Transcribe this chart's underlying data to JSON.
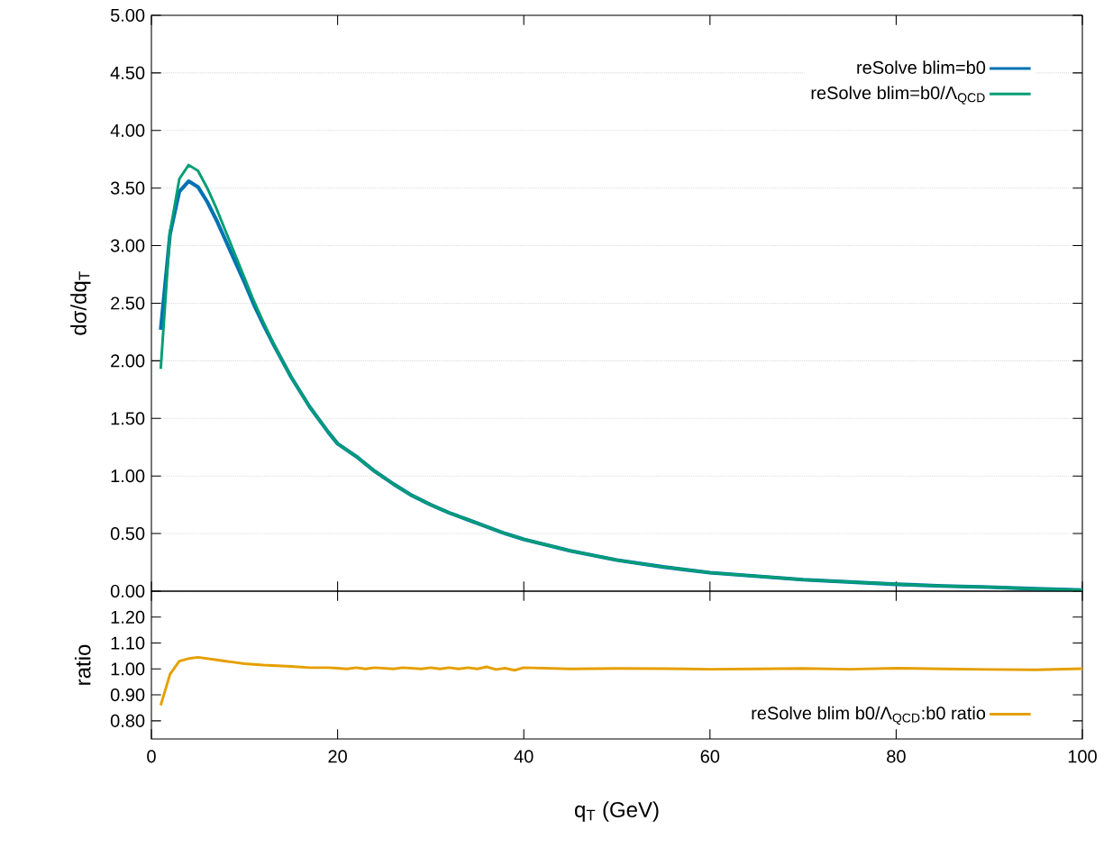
{
  "chart_data": [
    {
      "type": "line",
      "ylabel": "dσ/dq$_{T}$",
      "xlim": [
        0,
        100
      ],
      "ylim": [
        0,
        5
      ],
      "xticks": [
        0,
        20,
        40,
        60,
        80,
        100
      ],
      "yticks": [
        {
          "value": 0,
          "label": "0.00"
        },
        {
          "value": 0.5,
          "label": "0.50"
        },
        {
          "value": 1,
          "label": "1.00"
        },
        {
          "value": 1.5,
          "label": "1.50"
        },
        {
          "value": 2,
          "label": "2.00"
        },
        {
          "value": 2.5,
          "label": "2.50"
        },
        {
          "value": 3,
          "label": "3.00"
        },
        {
          "value": 3.5,
          "label": "3.50"
        },
        {
          "value": 4,
          "label": "4.00"
        },
        {
          "value": 4.5,
          "label": "4.50"
        },
        {
          "value": 5,
          "label": "5.00"
        }
      ],
      "tick_labels": "y",
      "grid": "y",
      "legend": "top right",
      "x": [
        1,
        2,
        3,
        4,
        5,
        6,
        7,
        8,
        9,
        10,
        11,
        12,
        13,
        14,
        15,
        16,
        17,
        18,
        19,
        20,
        22,
        24,
        26,
        28,
        30,
        32,
        34,
        36,
        38,
        40,
        45,
        50,
        55,
        60,
        65,
        70,
        75,
        80,
        85,
        90,
        95,
        100
      ],
      "series": [
        {
          "name": "reSolve blim=b0",
          "color": "#0072b2",
          "values": [
            2.27,
            3.1,
            3.47,
            3.56,
            3.51,
            3.38,
            3.22,
            3.04,
            2.86,
            2.68,
            2.49,
            2.32,
            2.16,
            2.01,
            1.86,
            1.73,
            1.6,
            1.49,
            1.38,
            1.28,
            1.17,
            1.04,
            0.93,
            0.83,
            0.75,
            0.68,
            0.62,
            0.56,
            0.5,
            0.45,
            0.35,
            0.27,
            0.21,
            0.16,
            0.13,
            0.1,
            0.08,
            0.06,
            0.045,
            0.035,
            0.02,
            0.01
          ]
        },
        {
          "name": "reSolve blim=b0/Λ$_{QCD}$",
          "color": "#009e73",
          "values": [
            1.93,
            3.12,
            3.58,
            3.7,
            3.65,
            3.5,
            3.32,
            3.12,
            2.92,
            2.72,
            2.52,
            2.34,
            2.17,
            2.01,
            1.86,
            1.73,
            1.6,
            1.49,
            1.38,
            1.28,
            1.17,
            1.04,
            0.93,
            0.83,
            0.75,
            0.68,
            0.62,
            0.56,
            0.5,
            0.45,
            0.35,
            0.27,
            0.21,
            0.16,
            0.13,
            0.1,
            0.08,
            0.06,
            0.045,
            0.035,
            0.02,
            0.01
          ]
        }
      ]
    },
    {
      "type": "line",
      "xlabel": "q$_{T}$ (GeV)",
      "ylabel": "ratio",
      "xlim": [
        0,
        100
      ],
      "ylim": [
        0.73,
        1.3
      ],
      "xticks": [
        0,
        20,
        40,
        60,
        80,
        100
      ],
      "yticks": [
        {
          "value": 0.8,
          "label": "0.80"
        },
        {
          "value": 0.9,
          "label": "0.90"
        },
        {
          "value": 1.0,
          "label": "1.00"
        },
        {
          "value": 1.1,
          "label": "1.10"
        },
        {
          "value": 1.2,
          "label": "1.20"
        }
      ],
      "legend": "bottom right",
      "x": [
        1,
        2,
        3,
        4,
        5,
        6,
        7,
        8,
        10,
        12,
        15,
        17,
        19,
        20,
        21,
        22,
        23,
        24,
        26,
        27,
        29,
        30,
        31,
        32,
        33,
        34,
        35,
        36,
        37,
        38,
        39,
        40,
        45,
        50,
        55,
        60,
        65,
        70,
        75,
        80,
        85,
        90,
        95,
        100
      ],
      "series": [
        {
          "name": "reSolve blim b0/Λ$_{QCD}$:b0 ratio",
          "color": "#e69f00",
          "values": [
            0.86,
            0.98,
            1.03,
            1.04,
            1.045,
            1.04,
            1.035,
            1.03,
            1.02,
            1.015,
            1.01,
            1.005,
            1.005,
            1.003,
            1.0,
            1.005,
            1.0,
            1.005,
            1.0,
            1.005,
            1.0,
            1.005,
            1.0,
            1.005,
            1.0,
            1.005,
            1.0,
            1.008,
            0.998,
            1.003,
            0.995,
            1.005,
            1.0,
            1.002,
            1.001,
            0.999,
            1.0,
            1.002,
            0.999,
            1.003,
            1.0,
            0.998,
            0.997,
            1.001
          ]
        }
      ]
    }
  ]
}
